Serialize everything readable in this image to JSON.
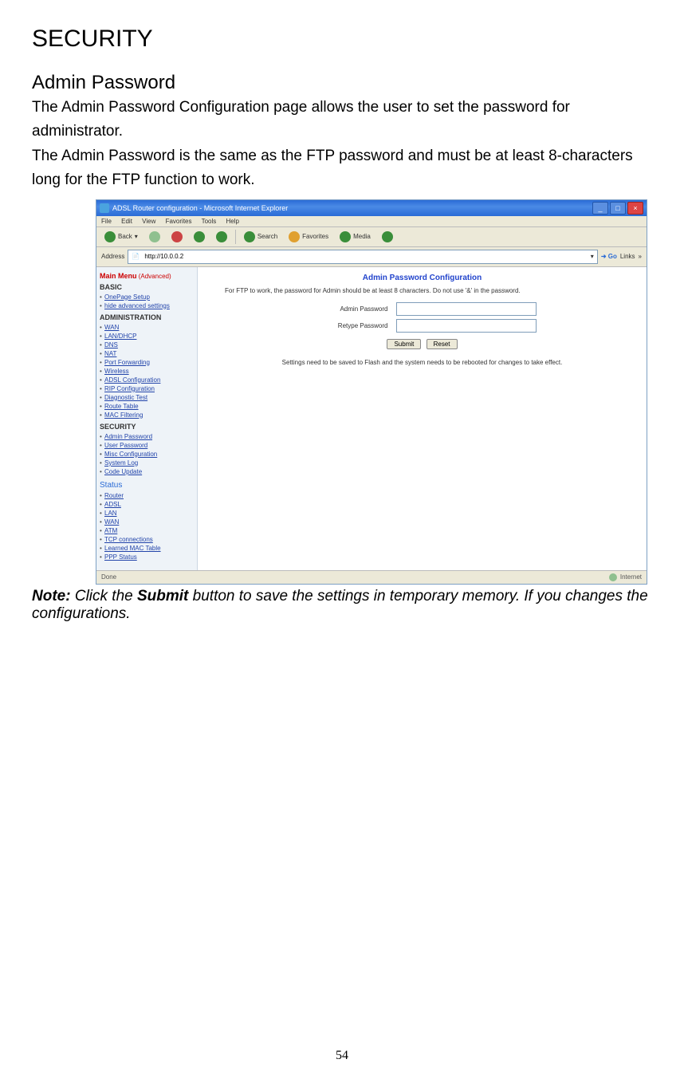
{
  "doc": {
    "h1": "SECURITY",
    "h2": "Admin Password",
    "para1": "The Admin Password Configuration page allows the user to set the password for administrator.",
    "para2": "The Admin Password is the same as the FTP password and must be at least 8-characters long for the FTP function to work.",
    "note_label": "Note:",
    "note_pre": " Click the ",
    "note_bold": "Submit",
    "note_post": " button to save the settings in temporary memory. If you changes the configurations.",
    "page_number": "54"
  },
  "browser": {
    "title": "ADSL Router configuration - Microsoft Internet Explorer",
    "menu": [
      "File",
      "Edit",
      "View",
      "Favorites",
      "Tools",
      "Help"
    ],
    "toolbar": {
      "back": "Back",
      "search": "Search",
      "favorites": "Favorites",
      "media": "Media"
    },
    "address_label": "Address",
    "address_value": "http://10.0.0.2",
    "go": "Go",
    "links": "Links",
    "status_left": "Done",
    "status_right": "Internet"
  },
  "sidebar": {
    "main_menu": "Main Menu",
    "advanced": "(Advanced)",
    "basic": "BASIC",
    "basic_items": [
      "OnePage Setup",
      "hide advanced settings"
    ],
    "admin": "ADMINISTRATION",
    "admin_items": [
      "WAN",
      "LAN/DHCP",
      "DNS",
      "NAT",
      "Port Forwarding",
      "Wireless",
      "ADSL Configuration",
      "RIP Configuration",
      "Diagnostic Test",
      "Route Table",
      "MAC Filtering"
    ],
    "security": "SECURITY",
    "security_items": [
      "Admin Password",
      "User Password",
      "Misc Configuration",
      "System Log",
      "Code Update"
    ],
    "status": "Status",
    "status_items": [
      "Router",
      "ADSL",
      "LAN",
      "WAN",
      "ATM",
      "TCP connections",
      "Learned MAC Table",
      "PPP Status"
    ]
  },
  "main": {
    "title": "Admin Password Configuration",
    "subtitle": "For FTP to work, the password for Admin should be at least 8 characters. Do not use '&' in the password.",
    "label1": "Admin Password",
    "label2": "Retype Password",
    "submit": "Submit",
    "reset": "Reset",
    "save_note": "Settings need to be saved to Flash and the system needs to be rebooted for changes to take effect."
  },
  "colors": {
    "titlebar_top": "#2a6bd6",
    "menubar_bg": "#ece9d8",
    "sidebar_bg": "#eef3f8",
    "link_color": "#2244aa",
    "accent_red": "#c00",
    "heading_blue": "#2244cc"
  }
}
